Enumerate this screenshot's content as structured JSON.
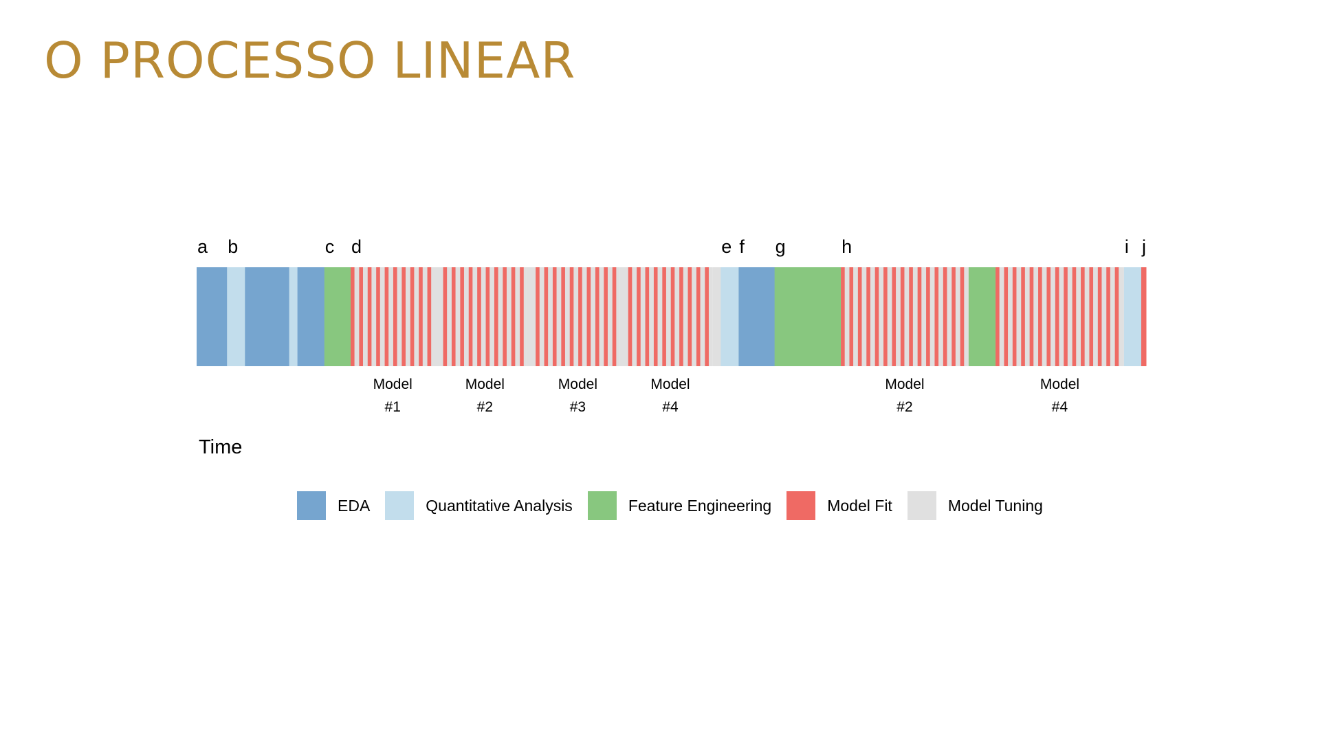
{
  "slide": {
    "title": "O PROCESSO LINEAR",
    "title_color": "#B88A35"
  },
  "diagram": {
    "phase_colors": {
      "EDA": "#76A5CF",
      "Quantitative Analysis": "#C2DDEC",
      "Feature Engineering": "#88C77F",
      "Model Fit": "#EF6A64",
      "Model Tuning": "#E0E0E0"
    },
    "segments": [
      {
        "phase": "EDA",
        "duration": 44
      },
      {
        "phase": "Quantitative Analysis",
        "duration": 26
      },
      {
        "phase": "EDA",
        "duration": 64
      },
      {
        "phase": "Quantitative Analysis",
        "duration": 12
      },
      {
        "phase": "EDA",
        "duration": 39
      },
      {
        "phase": "Feature Engineering",
        "duration": 38
      },
      {
        "phase": "Model Fit/Model Tuning",
        "duration": 122,
        "model": 1
      },
      {
        "phase": "Model Tuning",
        "duration": 12
      },
      {
        "phase": "Model Fit/Model Tuning",
        "duration": 121,
        "model": 2
      },
      {
        "phase": "Model Tuning",
        "duration": 13
      },
      {
        "phase": "Model Fit/Model Tuning",
        "duration": 122,
        "model": 3
      },
      {
        "phase": "Model Tuning",
        "duration": 12
      },
      {
        "phase": "Model Fit/Model Tuning",
        "duration": 122,
        "model": 4
      },
      {
        "phase": "Model Tuning",
        "duration": 12
      },
      {
        "phase": "Quantitative Analysis",
        "duration": 26
      },
      {
        "phase": "EDA",
        "duration": 52
      },
      {
        "phase": "Feature Engineering",
        "duration": 96
      },
      {
        "phase": "Model Fit/Model Tuning",
        "duration": 185,
        "model": 2
      },
      {
        "phase": "Feature Engineering",
        "duration": 39
      },
      {
        "phase": "Model Fit/Model Tuning",
        "duration": 186,
        "model": 4
      },
      {
        "phase": "Quantitative Analysis",
        "duration": 25
      },
      {
        "phase": "Model Fit",
        "duration": 7
      }
    ],
    "markers": [
      {
        "label": "a",
        "segment": 0
      },
      {
        "label": "b",
        "segment": 1
      },
      {
        "label": "c",
        "segment": 5
      },
      {
        "label": "d",
        "segment": 6
      },
      {
        "label": "e",
        "segment": 14
      },
      {
        "label": "f",
        "segment": 15
      },
      {
        "label": "g",
        "segment": 16
      },
      {
        "label": "h",
        "segment": 17
      },
      {
        "label": "i",
        "segment": 20
      },
      {
        "label": "j",
        "segment": 21
      }
    ],
    "model_labels": [
      {
        "segment": 6,
        "line1": "Model",
        "line2": "#1"
      },
      {
        "segment": 8,
        "line1": "Model",
        "line2": "#2"
      },
      {
        "segment": 10,
        "line1": "Model",
        "line2": "#3"
      },
      {
        "segment": 12,
        "line1": "Model",
        "line2": "#4"
      },
      {
        "segment": 17,
        "line1": "Model",
        "line2": "#2"
      },
      {
        "segment": 19,
        "line1": "Model",
        "line2": "#4"
      }
    ],
    "time_label": "Time",
    "legend": [
      {
        "label": "EDA",
        "color": "#76A5CF"
      },
      {
        "label": "Quantitative Analysis",
        "color": "#C2DDEC"
      },
      {
        "label": "Feature Engineering",
        "color": "#88C77F"
      },
      {
        "label": "Model Fit",
        "color": "#EF6A64"
      },
      {
        "label": "Model Tuning",
        "color": "#E0E0E0"
      }
    ]
  }
}
